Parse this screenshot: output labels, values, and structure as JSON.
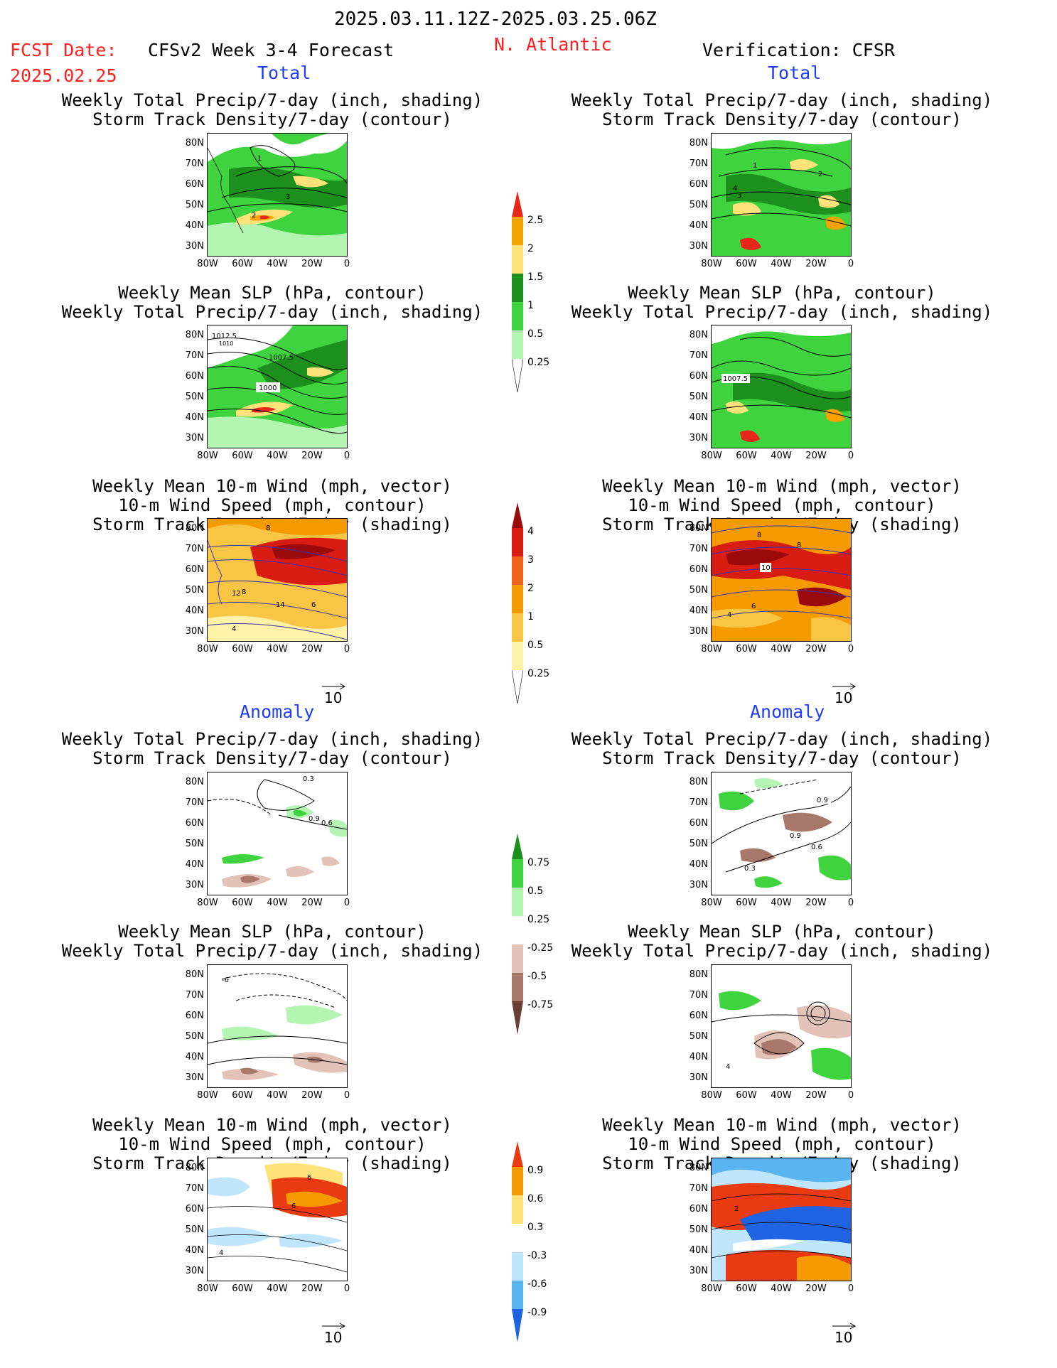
{
  "header": {
    "period": "2025.03.11.12Z-2025.03.25.06Z",
    "fcst_label": "FCST Date:",
    "fcst_date": "2025.02.25",
    "model": "CFSv2 Week 3-4 Forecast",
    "region": "N. Atlantic",
    "verification": "Verification: CFSR"
  },
  "sections": {
    "total": "Total",
    "anomaly": "Anomaly"
  },
  "panel_titles": {
    "precip_storm": [
      "Weekly Total Precip/7-day (inch, shading)",
      "Storm Track Density/7-day (contour)"
    ],
    "slp_precip": [
      "Weekly Mean SLP (hPa, contour)",
      "Weekly Total Precip/7-day (inch, shading)"
    ],
    "wind_storm": [
      "Weekly Mean 10-m Wind (mph, vector)",
      "10-m Wind Speed (mph, contour)",
      "Storm Track Density/7-day (shading)"
    ]
  },
  "axes": {
    "lat_ticks": [
      "80N",
      "70N",
      "60N",
      "50N",
      "40N",
      "30N"
    ],
    "lon_ticks": [
      "80W",
      "60W",
      "40W",
      "20W",
      "0"
    ]
  },
  "vector_reference": "10",
  "colorbars": {
    "total_precip": {
      "labels": [
        "2.5",
        "2",
        "1.5",
        "1",
        "0.5",
        "0.25"
      ],
      "colors": [
        "#e8261a",
        "#f5a300",
        "#ffe27a",
        "#1c8f1c",
        "#3fd43f",
        "#b4f5b4"
      ]
    },
    "total_storm": {
      "labels": [
        "4",
        "3",
        "2",
        "1",
        "0.5",
        "0.25"
      ],
      "colors": [
        "#9b0a0a",
        "#d91c12",
        "#f06318",
        "#f59a00",
        "#f8c545",
        "#fdf2a8"
      ]
    },
    "anom_precip": {
      "labels": [
        "0.75",
        "0.5",
        "0.25",
        "-0.25",
        "-0.5",
        "-0.75"
      ],
      "colors": [
        "#1c8f1c",
        "#3fd43f",
        "#b4f5b4",
        "#ffffff",
        "#e3c3b8",
        "#a8796b",
        "#6b3f33"
      ]
    },
    "anom_storm": {
      "labels": [
        "0.9",
        "0.6",
        "0.3",
        "-0.3",
        "-0.6",
        "-0.9"
      ],
      "colors": [
        "#ea3a12",
        "#f59a00",
        "#ffe27a",
        "#ffffff",
        "#bfe6fa",
        "#59b4f2",
        "#1f63e0"
      ]
    }
  },
  "contour_labels": {
    "fc_total_precip": [
      "1",
      "3",
      "2"
    ],
    "fc_total_slp": [
      "1012.5",
      "1010",
      "1007.5",
      "1000"
    ],
    "fc_total_wind": [
      "8",
      "12",
      "8",
      "14",
      "6",
      "4"
    ],
    "fc_anom_precip": [
      "0.3",
      "0.9",
      "0.6"
    ],
    "fc_anom_slp": [
      "-6"
    ],
    "fc_anom_wind": [
      "6",
      "6",
      "4"
    ],
    "vf_total_precip": [
      "1",
      "2",
      "4",
      "3"
    ],
    "vf_total_slp": [
      "1007.5"
    ],
    "vf_total_wind": [
      "8",
      "8",
      "10",
      "6",
      "4"
    ],
    "vf_anom_precip": [
      "0.9",
      "0.9",
      "0.6",
      "0.3"
    ],
    "vf_anom_slp": [
      "4"
    ],
    "vf_anom_wind": [
      "2"
    ]
  }
}
